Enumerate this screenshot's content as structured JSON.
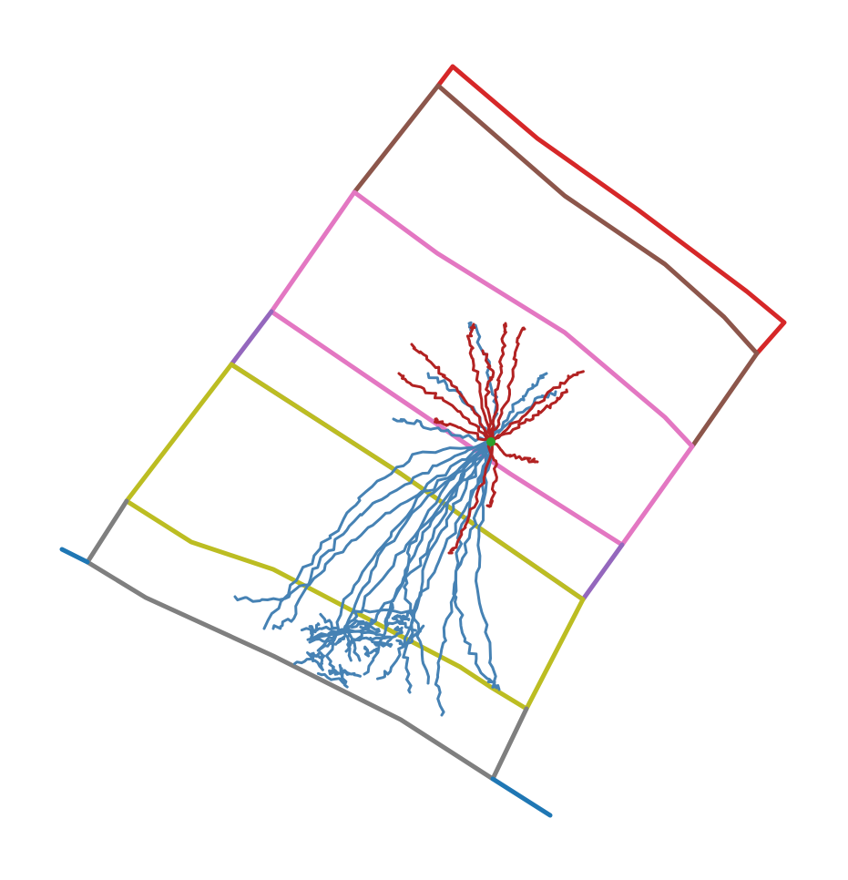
{
  "figure": {
    "type": "neuron-morphology-layers",
    "colors": {
      "pia_boundary": "#d62728",
      "layer_2_3": "#8c564b",
      "layer_4": "#e377c2",
      "layer_5_thin": "#9467bd",
      "layer_6": "#bcbd22",
      "wm_boundary": "#7f7f7f",
      "white_matter_line": "#1f77b4",
      "axon": "#4682b4",
      "dendrite": "#b22222",
      "soma": "#2ca02c"
    }
  }
}
